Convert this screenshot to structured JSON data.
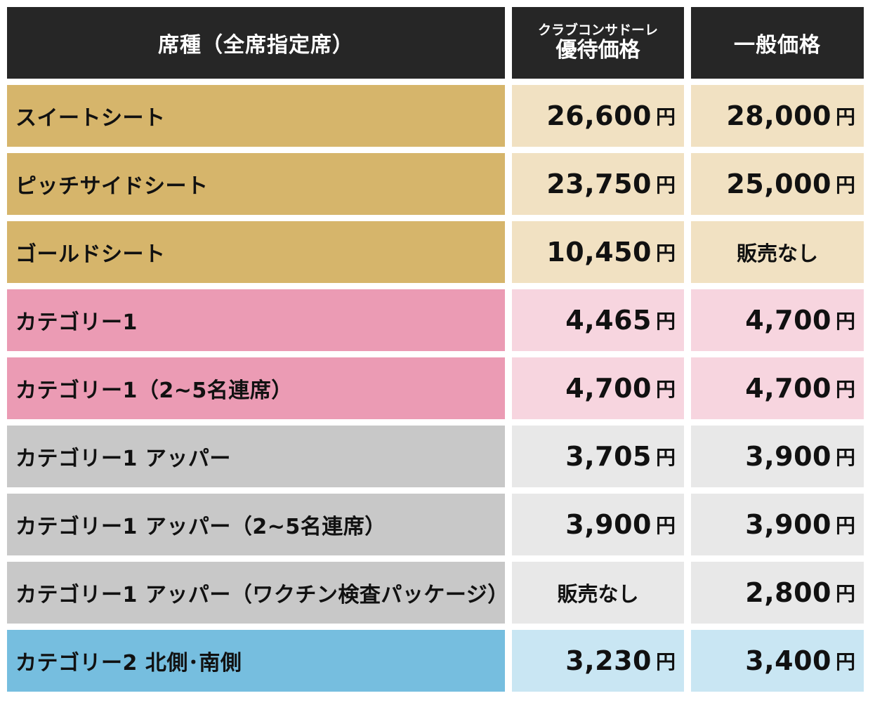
{
  "header": {
    "seat": "席種（全席指定席）",
    "member_sub": "クラブコンサドーレ",
    "member_main": "優待価格",
    "general": "一般価格"
  },
  "unit": "円",
  "colors": {
    "header": "#262626",
    "gold": "#d6b56b",
    "gold_light": "#f1e1c2",
    "pink": "#eb9bb4",
    "pink_light": "#f7d5df",
    "gray": "#c8c8c8",
    "gray_light": "#e8e8e8",
    "blue": "#76bedf",
    "blue_light": "#c9e6f3"
  },
  "rows": [
    {
      "name": "スイートシート",
      "member": "26,600",
      "general": "28,000",
      "group": "gold"
    },
    {
      "name": "ピッチサイドシート",
      "member": "23,750",
      "general": "25,000",
      "group": "gold"
    },
    {
      "name": "ゴールドシート",
      "member": "10,450",
      "general": "販売なし",
      "group": "gold"
    },
    {
      "name": "カテゴリー1",
      "member": "4,465",
      "general": "4,700",
      "group": "pink"
    },
    {
      "name": "カテゴリー1（2~5名連席）",
      "member": "4,700",
      "general": "4,700",
      "group": "pink"
    },
    {
      "name": "カテゴリー1 アッパー",
      "member": "3,705",
      "general": "3,900",
      "group": "gray"
    },
    {
      "name": "カテゴリー1 アッパー（2~5名連席）",
      "member": "3,900",
      "general": "3,900",
      "group": "gray"
    },
    {
      "name": "カテゴリー1 アッパー（ワクチン検査パッケージ）",
      "member": "販売なし",
      "general": "2,800",
      "group": "gray"
    },
    {
      "name": "カテゴリー2 北側･南側",
      "member": "3,230",
      "general": "3,400",
      "group": "blue"
    }
  ]
}
